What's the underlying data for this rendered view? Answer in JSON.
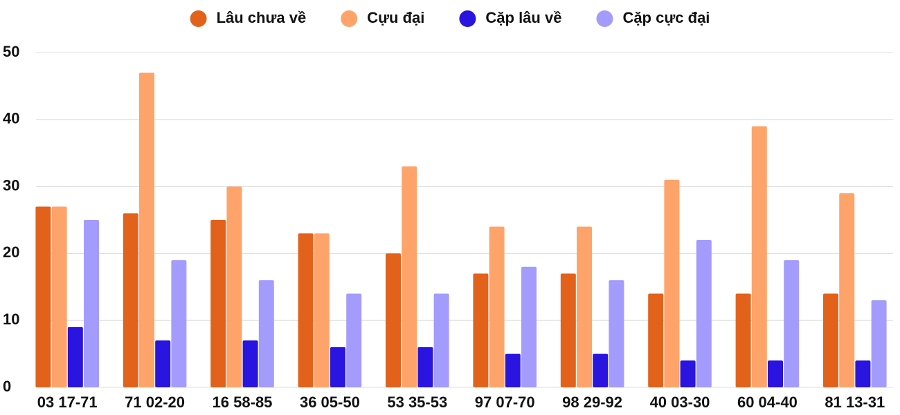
{
  "chart_data": {
    "type": "bar",
    "categories": [
      "03 17-71",
      "71 02-20",
      "16 58-85",
      "36 05-50",
      "53 35-53",
      "97 07-70",
      "98 29-92",
      "40 03-30",
      "60 04-40",
      "81 13-31"
    ],
    "series": [
      {
        "name": "Lâu chưa về",
        "color": "#e2621b",
        "values": [
          27,
          26,
          25,
          23,
          20,
          17,
          17,
          14,
          14,
          14
        ]
      },
      {
        "name": "Cựu đại",
        "color": "#fea46a",
        "values": [
          27,
          47,
          30,
          23,
          33,
          24,
          24,
          31,
          39,
          29
        ]
      },
      {
        "name": "Cặp lâu về",
        "color": "#2a14e0",
        "values": [
          9,
          7,
          7,
          6,
          6,
          5,
          5,
          4,
          4,
          4
        ]
      },
      {
        "name": "Cặp cực đại",
        "color": "#a49cfc",
        "values": [
          25,
          19,
          16,
          14,
          14,
          18,
          16,
          22,
          19,
          13
        ]
      }
    ],
    "ylim": [
      0,
      50
    ],
    "yticks": [
      0,
      10,
      20,
      30,
      40,
      50
    ],
    "grid": true,
    "legend": "top"
  }
}
